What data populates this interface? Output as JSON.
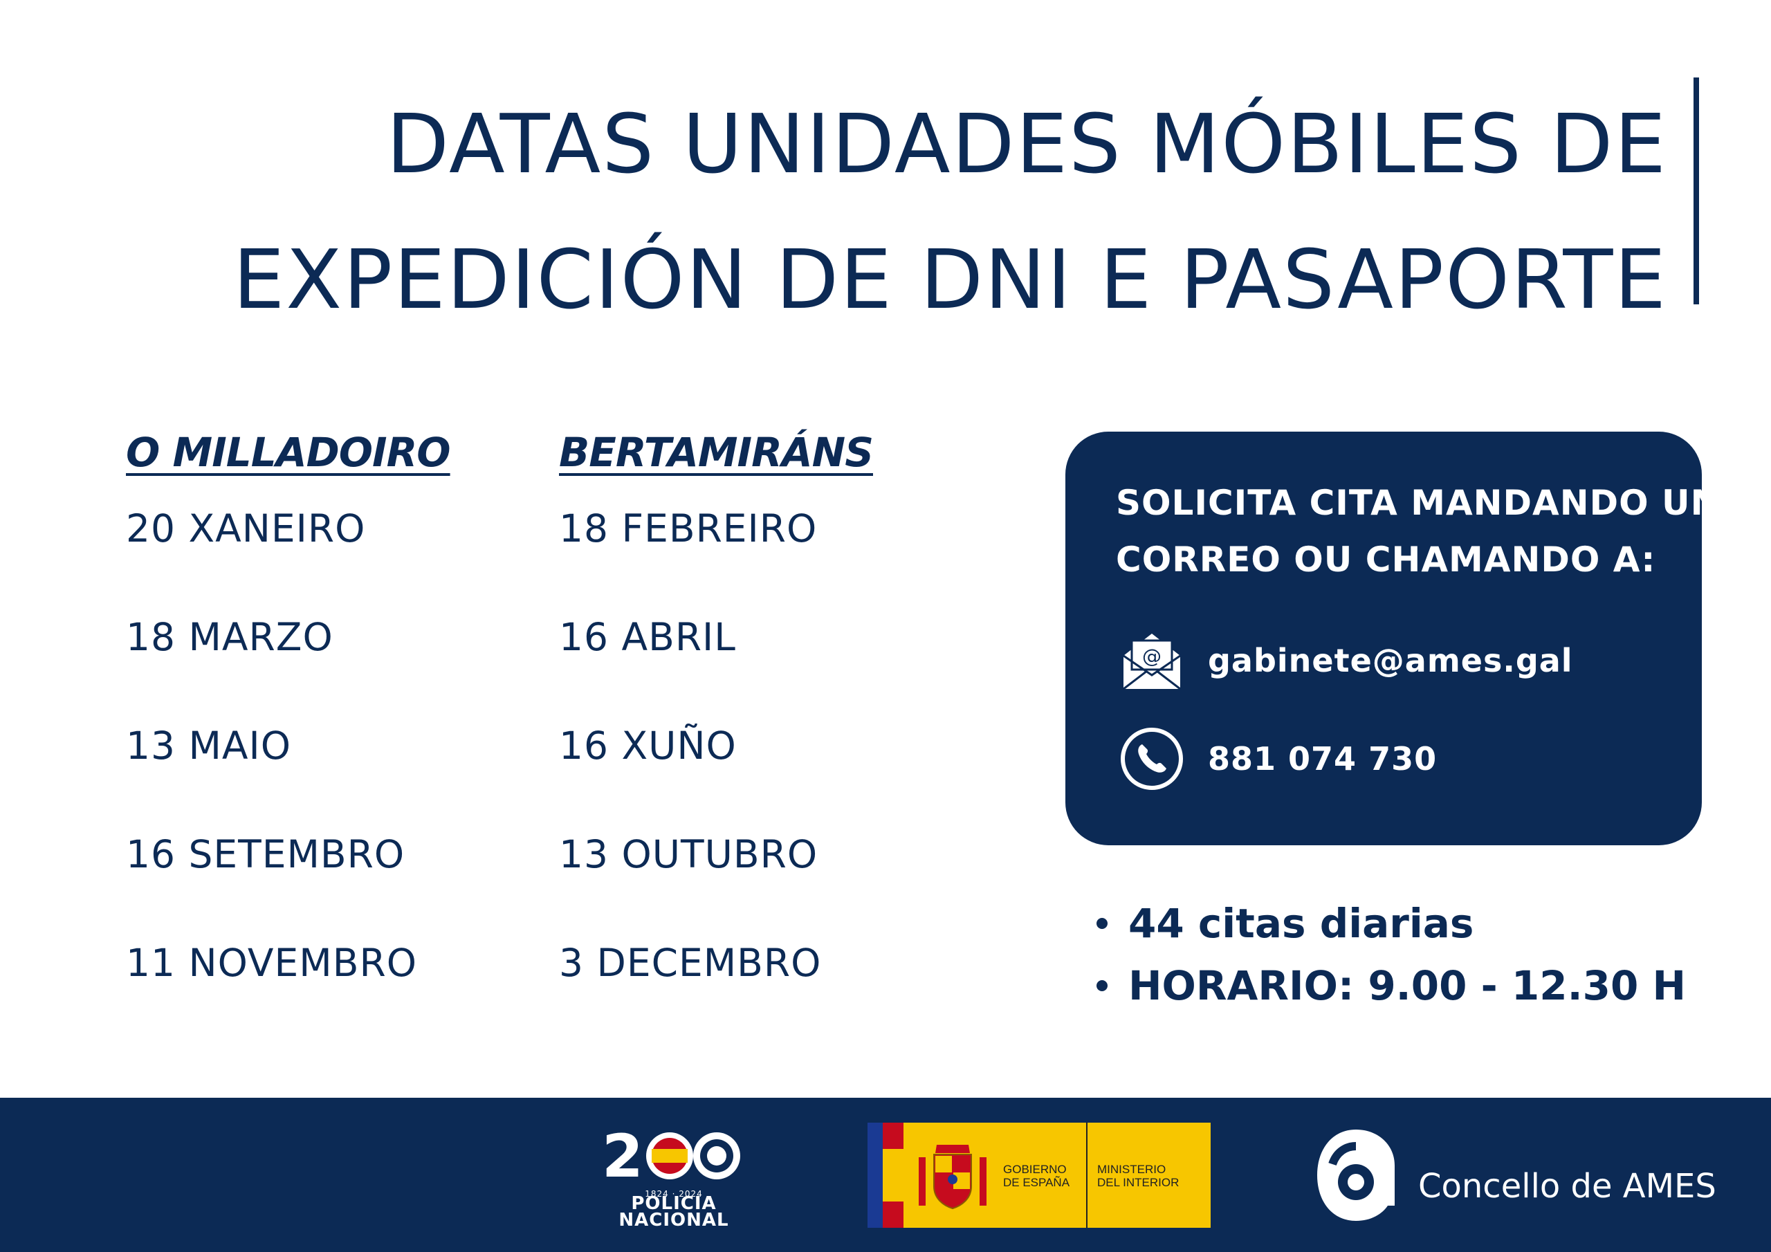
{
  "title": {
    "line1": "DATAS UNIDADES MÓBILES DE",
    "line2": "EXPEDICIÓN DE DNI E PASAPORTE"
  },
  "locations": [
    {
      "name": "O MILLADOIRO",
      "dates": [
        "20 XANEIRO",
        "18 MARZO",
        "13 MAIO",
        "16 SETEMBRO",
        "11 NOVEMBRO"
      ]
    },
    {
      "name": "BERTAMIRÁNS",
      "dates": [
        "18 FEBREIRO",
        "16 ABRIL",
        "16 XUÑO",
        "13 OUTUBRO",
        "3 DECEMBRO"
      ]
    }
  ],
  "contact": {
    "heading_line1": "SOLICITA CITA MANDANDO UN",
    "heading_line2": "CORREO OU CHAMANDO A:",
    "email": "gabinete@ames.gal",
    "phone": "881 074 730",
    "email_icon": "envelope-at-icon",
    "phone_icon": "phone-circle-icon"
  },
  "info": [
    "44 citas diarias",
    "HORARIO: 9.00 - 12.30 H"
  ],
  "footer": {
    "policia_years": "1824 · 2024",
    "policia_line1": "POLICIA",
    "policia_line2": "NACIONAL",
    "gobierno": "GOBIERNO\nDE ESPAÑA",
    "ministerio": "MINISTERIO\nDEL INTERIOR",
    "concello": "Concello de AMES"
  },
  "colors": {
    "navy": "#0c2a55",
    "white": "#ffffff",
    "gob_yellow": "#f7c600"
  }
}
